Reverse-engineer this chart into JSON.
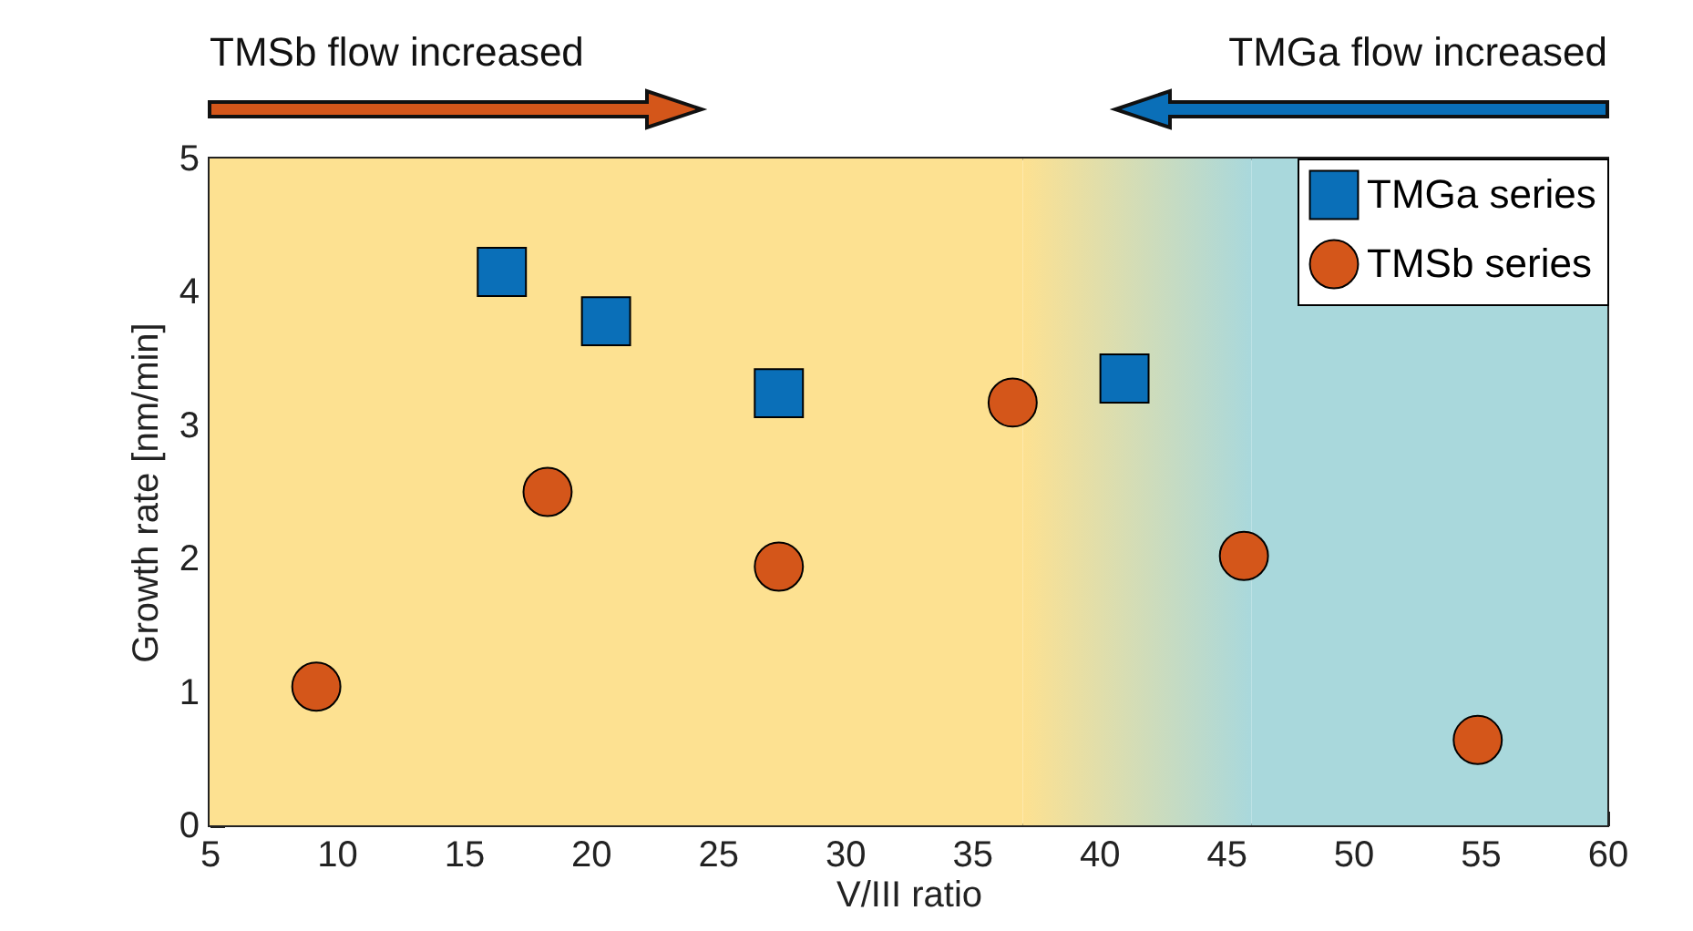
{
  "chart_data": {
    "type": "scatter",
    "xlabel": "V/III ratio",
    "ylabel": "Growth rate [nm/min]",
    "annotations": [
      "TMSb flow increased",
      "TMGa flow increased"
    ],
    "xlim": [
      5,
      60
    ],
    "xticks": [
      5,
      10,
      15,
      20,
      25,
      30,
      35,
      40,
      45,
      50,
      55,
      60
    ],
    "ylim": [
      0,
      5
    ],
    "yticks": [
      0,
      1,
      2,
      3,
      4,
      5
    ],
    "grid": false,
    "legend": "top right",
    "bands": [
      {
        "axis": "x",
        "from": 5,
        "to": 37,
        "color": "#fde191"
      },
      {
        "axis": "x",
        "from": 37,
        "to": 46
      },
      {
        "axis": "x",
        "from": 46,
        "to": 60,
        "color": "#a9d8dc"
      }
    ],
    "series": [
      {
        "name": "TMGa series",
        "color": "#0a6fb8",
        "marker": "square",
        "x": [
          16.5,
          20.6,
          27.4,
          41.0
        ],
        "values": [
          4.15,
          3.78,
          3.24,
          3.35
        ]
      },
      {
        "name": "TMSb series",
        "color": "#d4561a",
        "marker": "circle",
        "x": [
          9.2,
          18.3,
          27.4,
          36.6,
          45.7,
          54.9
        ],
        "values": [
          1.04,
          2.5,
          1.94,
          3.17,
          2.02,
          0.64
        ]
      }
    ]
  }
}
